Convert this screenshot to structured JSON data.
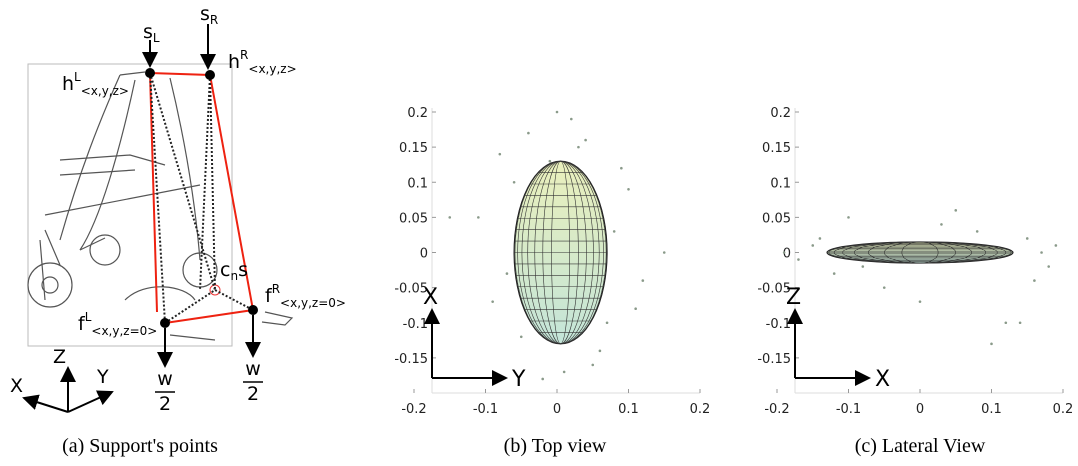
{
  "diagram": {
    "labels": {
      "s_left": {
        "text": "s",
        "sub": "L"
      },
      "s_right": {
        "text": "s",
        "sub": "R"
      },
      "h_left": {
        "text": "h",
        "sup": "L",
        "sub": "<x,y,z>"
      },
      "h_right": {
        "text": "h",
        "sup": "R",
        "sub": "<x,y,z>"
      },
      "center": {
        "text": "c",
        "sub": "n",
        "after": "s"
      },
      "f_right": {
        "text": "f",
        "sup": "R",
        "sub": "<x,y,z=0>"
      },
      "f_left": {
        "text": "f",
        "sup": "L",
        "sub": "<x,y,z=0>"
      },
      "w_left": {
        "num": "w",
        "den": "2"
      },
      "w_right": {
        "num": "w",
        "den": "2"
      },
      "axis_z": "Z",
      "axis_x": "X",
      "axis_y": "Y"
    },
    "caption": "(a) Support's points"
  },
  "chart_data": [
    {
      "type": "scatter",
      "caption": "(b) Top view",
      "axis_h": "Y",
      "axis_v": "X",
      "color": "#8a9a8a",
      "xlim": [
        -0.2,
        0.2
      ],
      "ylim": [
        -0.2,
        0.2
      ],
      "xticks": [
        -0.2,
        -0.1,
        0,
        0.1,
        0.2
      ],
      "yticks": [
        0.2,
        0.15,
        0.1,
        0.05,
        0,
        -0.05,
        -0.1,
        -0.15
      ],
      "ellipse": {
        "cx": 0.005,
        "cy": 0,
        "rx": 0.065,
        "ry": 0.13
      },
      "x": [
        0.02,
        -0.04,
        0.05,
        -0.08,
        0.09,
        -0.02,
        0.03,
        -0.11,
        0.12,
        0.0,
        -0.05,
        0.07,
        -0.15,
        0.15,
        0.01,
        -0.03,
        0.04,
        -0.09,
        0.1,
        0.06,
        -0.01,
        0.08,
        -0.06,
        0.11,
        -0.07
      ],
      "y": [
        0.19,
        0.17,
        -0.16,
        0.14,
        0.12,
        -0.18,
        0.15,
        0.05,
        -0.04,
        0.2,
        -0.12,
        -0.1,
        0.05,
        0.0,
        -0.17,
        0.08,
        0.16,
        -0.07,
        0.09,
        -0.14,
        0.13,
        0.03,
        0.1,
        -0.08,
        -0.03
      ]
    },
    {
      "type": "scatter",
      "caption": "(c) Lateral View",
      "axis_h": "X",
      "axis_v": "Z",
      "color": "#8a9a8a",
      "xlim": [
        -0.2,
        0.2
      ],
      "ylim": [
        -0.2,
        0.2
      ],
      "xticks": [
        -0.2,
        -0.1,
        0,
        0.1,
        0.2
      ],
      "yticks": [
        0.2,
        0.15,
        0.1,
        0.05,
        0,
        -0.05,
        -0.1,
        -0.15
      ],
      "ellipse": {
        "cx": 0,
        "cy": 0,
        "rx": 0.13,
        "ry": 0.015
      },
      "x": [
        -0.19,
        -0.15,
        -0.12,
        0.15,
        0.18,
        0.19,
        -0.17,
        0.16,
        -0.1,
        0.12,
        0.08,
        -0.05,
        0.05,
        0.1,
        -0.14,
        0.17,
        0.0,
        0.03,
        -0.08,
        0.14
      ],
      "y": [
        0.0,
        0.01,
        -0.03,
        0.02,
        -0.02,
        0.01,
        -0.01,
        -0.04,
        0.05,
        -0.1,
        0.03,
        -0.05,
        0.06,
        -0.13,
        0.02,
        0.0,
        -0.07,
        0.04,
        -0.02,
        -0.1
      ]
    }
  ]
}
